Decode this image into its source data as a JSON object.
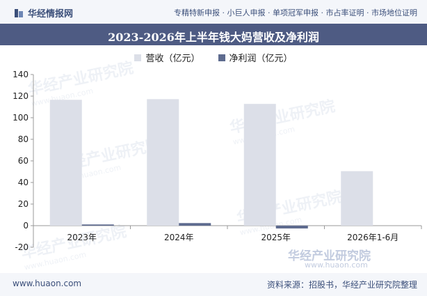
{
  "header": {
    "brand": "华经情报网",
    "tagline": "专精特新申报 · 小巨人申报 · 单项冠军申报 · 市占率证明 · 市场地位证明"
  },
  "title": "2023-2026年上半年钱大妈营收及净利润",
  "footer": {
    "site": "www.huaon.com",
    "source": "资料来源：招股书，华经产业研究院整理"
  },
  "watermark": {
    "text": "华经产业研究院",
    "url": "www.huaon.com"
  },
  "chart_data": {
    "type": "bar",
    "title": "2023-2026年上半年钱大妈营收及净利润",
    "xlabel": "",
    "ylabel": "",
    "ylim": [
      -20,
      140
    ],
    "yticks": [
      140,
      120,
      100,
      80,
      60,
      40,
      20,
      0,
      -20
    ],
    "grid": false,
    "legend_position": "top-center",
    "categories": [
      "2023年",
      "2024年",
      "2025年",
      "2026年1-6月"
    ],
    "series": [
      {
        "name": "营收（亿元）",
        "color": "#dcdfe8",
        "values": [
          116.6,
          117.2,
          112.8,
          50.5
        ]
      },
      {
        "name": "净利润（亿元）",
        "color": "#5e6b8f",
        "values": [
          1.1,
          2.4,
          -2.6,
          null
        ]
      }
    ]
  }
}
